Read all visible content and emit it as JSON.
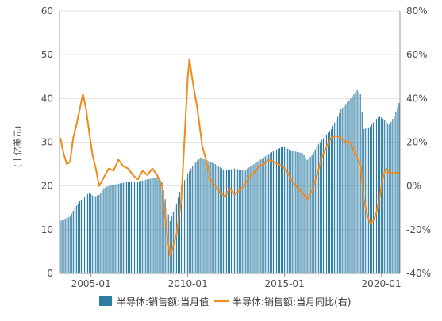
{
  "chart_data": {
    "type": "bar+line",
    "ylabel_left": "(十亿美元)",
    "y_left_range": [
      0,
      60
    ],
    "y_left_ticks": [
      "0",
      "10",
      "20",
      "30",
      "40",
      "50",
      "60"
    ],
    "y_right_range": [
      -40,
      80
    ],
    "y_right_ticks": [
      "-40%",
      "-20%",
      "0%",
      "20%",
      "40%",
      "60%",
      "80%"
    ],
    "x_start": "2003-06",
    "x_end": "2020-12",
    "x_ticks": [
      {
        "label": "2005-01",
        "date": "2005-01"
      },
      {
        "label": "2010-01",
        "date": "2010-01"
      },
      {
        "label": "2015-01",
        "date": "2015-01"
      },
      {
        "label": "2020-01",
        "date": "2020-01"
      }
    ],
    "grid": "horizontal",
    "legend_position": "bottom",
    "colors": {
      "bar": "#2e7ca3",
      "line": "#f08a1c",
      "grid": "#e3e3e3",
      "axis": "#999999"
    },
    "series": [
      {
        "name": "半导体:销售额:当月值",
        "kind": "bar",
        "axis": "left",
        "anchors": [
          [
            "2003-06",
            12
          ],
          [
            "2003-09",
            12.5
          ],
          [
            "2003-12",
            13
          ],
          [
            "2004-03",
            15
          ],
          [
            "2004-06",
            16.5
          ],
          [
            "2004-09",
            17.5
          ],
          [
            "2004-12",
            18.5
          ],
          [
            "2005-03",
            17.5
          ],
          [
            "2005-06",
            18
          ],
          [
            "2005-09",
            19.5
          ],
          [
            "2005-12",
            20
          ],
          [
            "2006-06",
            20.5
          ],
          [
            "2006-12",
            21
          ],
          [
            "2007-06",
            21
          ],
          [
            "2007-12",
            21.5
          ],
          [
            "2008-06",
            22
          ],
          [
            "2008-09",
            21
          ],
          [
            "2008-12",
            15
          ],
          [
            "2009-02",
            12
          ],
          [
            "2009-06",
            16
          ],
          [
            "2009-09",
            20
          ],
          [
            "2009-12",
            22
          ],
          [
            "2010-03",
            24
          ],
          [
            "2010-06",
            25.5
          ],
          [
            "2010-09",
            26.5
          ],
          [
            "2010-12",
            26
          ],
          [
            "2011-06",
            25
          ],
          [
            "2011-12",
            23.5
          ],
          [
            "2012-06",
            24
          ],
          [
            "2012-12",
            23.5
          ],
          [
            "2013-06",
            25
          ],
          [
            "2013-12",
            26.5
          ],
          [
            "2014-06",
            28
          ],
          [
            "2014-12",
            29
          ],
          [
            "2015-06",
            28
          ],
          [
            "2015-12",
            27.5
          ],
          [
            "2016-03",
            26
          ],
          [
            "2016-06",
            27
          ],
          [
            "2016-09",
            29
          ],
          [
            "2016-12",
            30.5
          ],
          [
            "2017-06",
            33
          ],
          [
            "2017-12",
            37.5
          ],
          [
            "2018-06",
            40
          ],
          [
            "2018-10",
            42
          ],
          [
            "2018-12",
            41
          ],
          [
            "2019-02",
            33
          ],
          [
            "2019-06",
            33.5
          ],
          [
            "2019-09",
            35
          ],
          [
            "2019-12",
            36
          ],
          [
            "2020-03",
            35
          ],
          [
            "2020-06",
            34
          ],
          [
            "2020-09",
            36
          ],
          [
            "2020-12",
            39
          ]
        ]
      },
      {
        "name": "半导体:销售额:当月同比(右)",
        "kind": "line",
        "axis": "right",
        "anchors": [
          [
            "2003-06",
            22
          ],
          [
            "2003-08",
            15
          ],
          [
            "2003-10",
            10
          ],
          [
            "2003-12",
            11
          ],
          [
            "2004-02",
            22
          ],
          [
            "2004-04",
            28
          ],
          [
            "2004-06",
            35
          ],
          [
            "2004-08",
            42
          ],
          [
            "2004-10",
            35
          ],
          [
            "2004-12",
            24
          ],
          [
            "2005-02",
            14
          ],
          [
            "2005-04",
            8
          ],
          [
            "2005-06",
            0
          ],
          [
            "2005-09",
            4
          ],
          [
            "2005-12",
            8
          ],
          [
            "2006-03",
            7
          ],
          [
            "2006-06",
            12
          ],
          [
            "2006-09",
            9
          ],
          [
            "2006-12",
            8
          ],
          [
            "2007-03",
            5
          ],
          [
            "2007-06",
            3
          ],
          [
            "2007-09",
            7
          ],
          [
            "2007-12",
            5
          ],
          [
            "2008-03",
            8
          ],
          [
            "2008-06",
            5
          ],
          [
            "2008-09",
            0
          ],
          [
            "2008-12",
            -22
          ],
          [
            "2009-02",
            -32
          ],
          [
            "2009-06",
            -22
          ],
          [
            "2009-09",
            -6
          ],
          [
            "2009-11",
            22
          ],
          [
            "2010-01",
            50
          ],
          [
            "2010-02",
            58
          ],
          [
            "2010-04",
            48
          ],
          [
            "2010-07",
            35
          ],
          [
            "2010-10",
            18
          ],
          [
            "2010-12",
            13
          ],
          [
            "2011-03",
            3
          ],
          [
            "2011-06",
            0
          ],
          [
            "2011-09",
            -3
          ],
          [
            "2011-12",
            -5
          ],
          [
            "2012-03",
            -1
          ],
          [
            "2012-06",
            -4
          ],
          [
            "2012-09",
            -2
          ],
          [
            "2012-12",
            0
          ],
          [
            "2013-03",
            4
          ],
          [
            "2013-06",
            6
          ],
          [
            "2013-09",
            9
          ],
          [
            "2013-12",
            10
          ],
          [
            "2014-03",
            12
          ],
          [
            "2014-06",
            11
          ],
          [
            "2014-09",
            10
          ],
          [
            "2014-12",
            9
          ],
          [
            "2015-03",
            6
          ],
          [
            "2015-06",
            2
          ],
          [
            "2015-09",
            -1
          ],
          [
            "2015-12",
            -3
          ],
          [
            "2016-03",
            -6
          ],
          [
            "2016-06",
            -2
          ],
          [
            "2016-09",
            5
          ],
          [
            "2016-12",
            13
          ],
          [
            "2017-03",
            18
          ],
          [
            "2017-06",
            22
          ],
          [
            "2017-09",
            23
          ],
          [
            "2017-12",
            22
          ],
          [
            "2018-03",
            20
          ],
          [
            "2018-06",
            20
          ],
          [
            "2018-09",
            14
          ],
          [
            "2018-12",
            10
          ],
          [
            "2019-02",
            -6
          ],
          [
            "2019-04",
            -13
          ],
          [
            "2019-06",
            -17
          ],
          [
            "2019-08",
            -16
          ],
          [
            "2019-10",
            -12
          ],
          [
            "2019-12",
            -5
          ],
          [
            "2020-02",
            4
          ],
          [
            "2020-04",
            8
          ],
          [
            "2020-06",
            6
          ],
          [
            "2020-09",
            6
          ],
          [
            "2020-12",
            6
          ]
        ]
      }
    ]
  }
}
